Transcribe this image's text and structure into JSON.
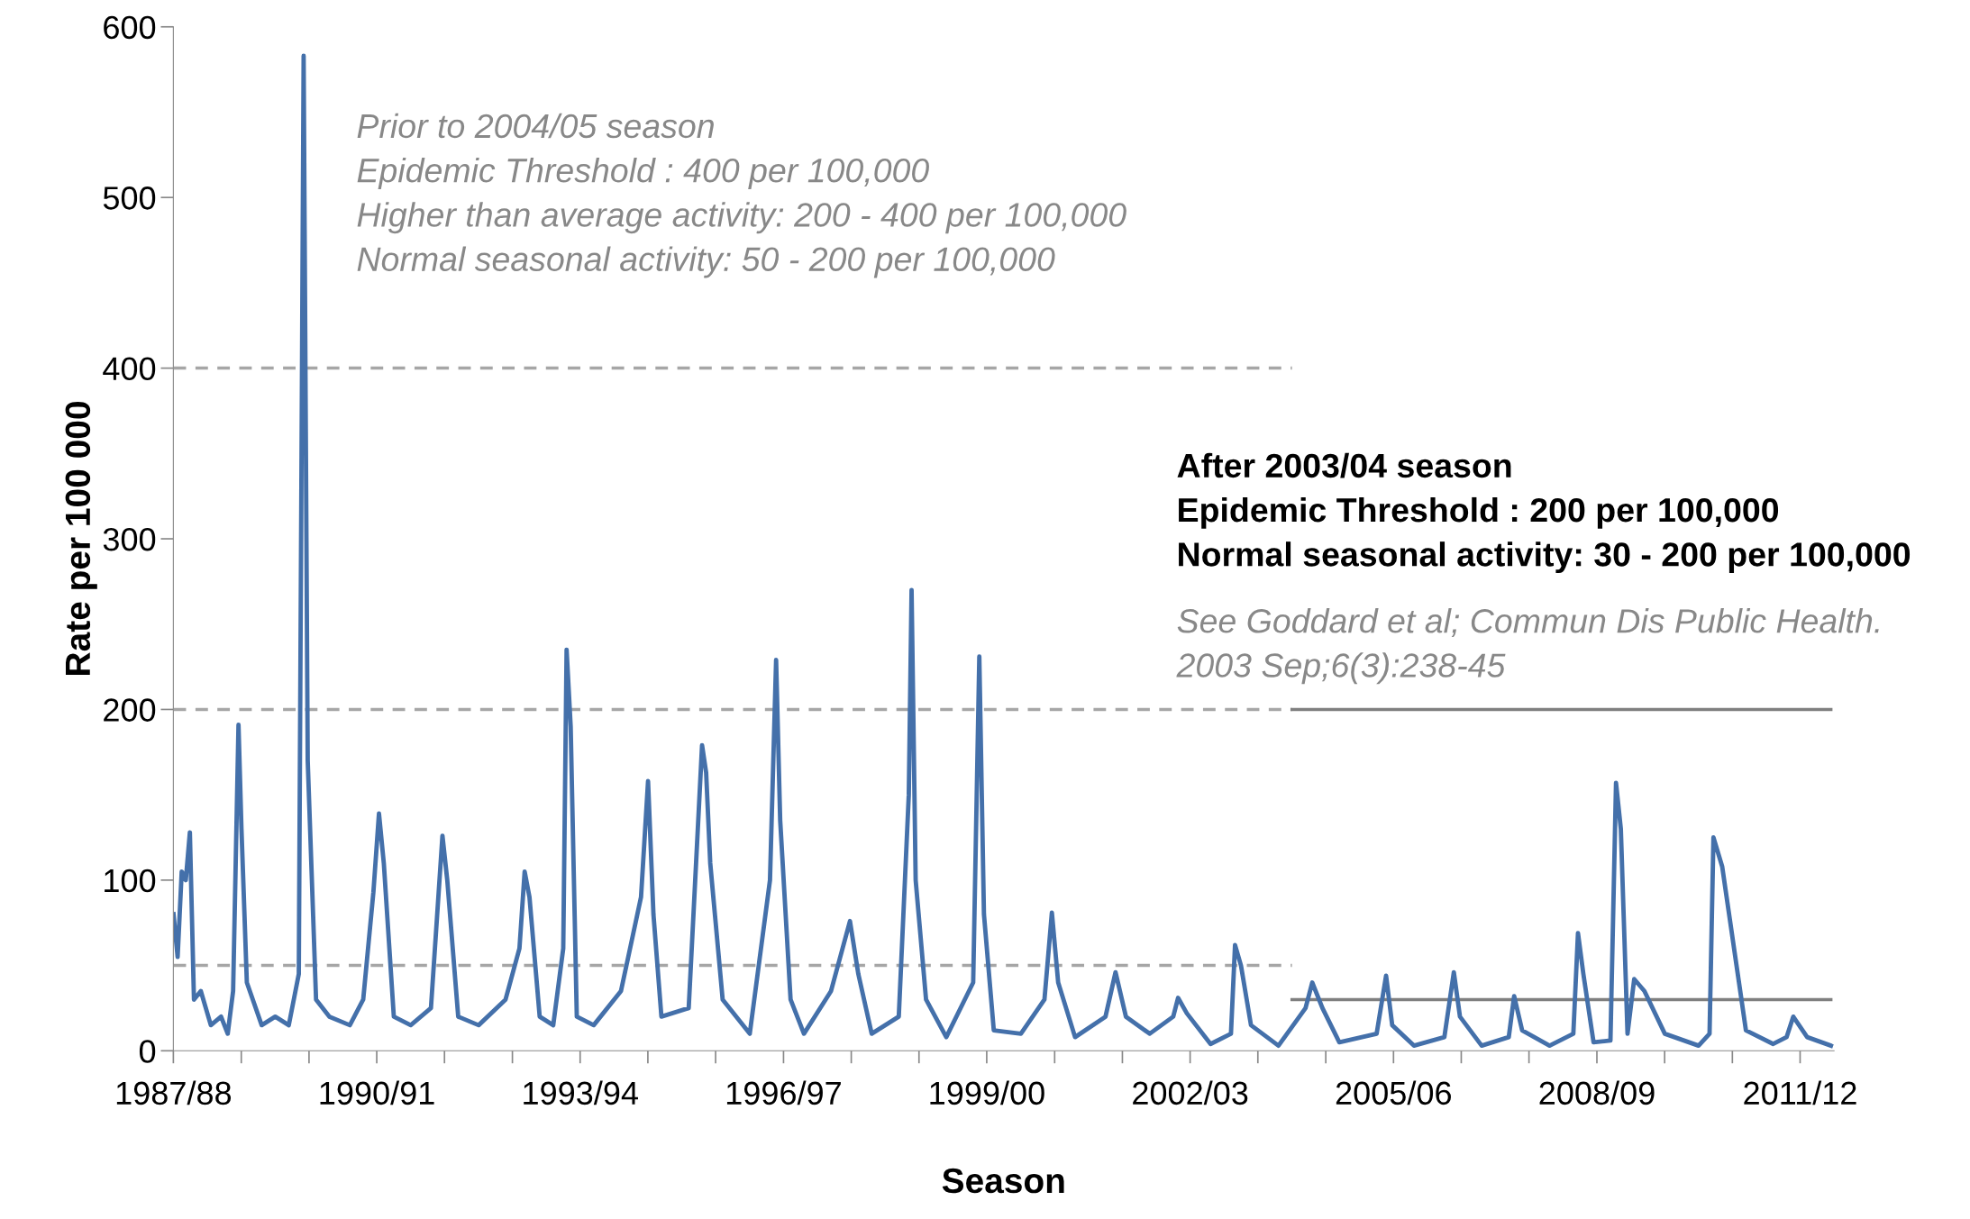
{
  "chart_data": {
    "type": "line",
    "xlabel": "Season",
    "ylabel": "Rate per 100 000",
    "xlim": [
      "1987-12-31",
      "2012-07-01"
    ],
    "ylim": [
      0,
      600
    ],
    "yticks": [
      0,
      100,
      200,
      300,
      400,
      500,
      600
    ],
    "xticks": [
      {
        "value": "1987-12-31",
        "label": "1987/88"
      },
      {
        "value": "1988-12-31",
        "label": null
      },
      {
        "value": "1989-12-31",
        "label": null
      },
      {
        "value": "1990-12-31",
        "label": "1990/91"
      },
      {
        "value": "1991-12-31",
        "label": null
      },
      {
        "value": "1992-12-31",
        "label": null
      },
      {
        "value": "1993-12-31",
        "label": "1993/94"
      },
      {
        "value": "1994-12-31",
        "label": null
      },
      {
        "value": "1995-12-31",
        "label": null
      },
      {
        "value": "1996-12-31",
        "label": "1996/97"
      },
      {
        "value": "1997-12-31",
        "label": null
      },
      {
        "value": "1998-12-31",
        "label": null
      },
      {
        "value": "1999-12-31",
        "label": "1999/00"
      },
      {
        "value": "2000-12-31",
        "label": null
      },
      {
        "value": "2001-12-31",
        "label": null
      },
      {
        "value": "2002-12-31",
        "label": "2002/03"
      },
      {
        "value": "2003-12-31",
        "label": null
      },
      {
        "value": "2004-12-31",
        "label": null
      },
      {
        "value": "2005-12-31",
        "label": "2005/06"
      },
      {
        "value": "2006-12-31",
        "label": null
      },
      {
        "value": "2007-12-31",
        "label": null
      },
      {
        "value": "2008-12-31",
        "label": "2008/09"
      },
      {
        "value": "2009-12-31",
        "label": null
      },
      {
        "value": "2010-12-31",
        "label": null
      },
      {
        "value": "2011-12-31",
        "label": "2011/12"
      }
    ],
    "grid": false,
    "legend": false,
    "marker": "none",
    "series": [
      {
        "color": "#a6a6a6",
        "line_style": "dashed",
        "x": [
          "1988-01-01",
          "2004-07-02"
        ],
        "values": [
          400,
          400
        ]
      },
      {
        "color": "#a6a6a6",
        "line_style": "dashed",
        "x": [
          "1988-01-01",
          "2004-07-02"
        ],
        "values": [
          200,
          200
        ]
      },
      {
        "color": "#a6a6a6",
        "line_style": "dashed",
        "x": [
          "1988-01-01",
          "2004-07-02"
        ],
        "values": [
          50,
          50
        ]
      },
      {
        "color": "#7f7f7f",
        "line_style": "solid",
        "x": [
          "2004-07-02",
          "2012-06-14"
        ],
        "values": [
          200,
          200
        ]
      },
      {
        "color": "#7f7f7f",
        "line_style": "solid",
        "x": [
          "2004-07-02",
          "2012-06-14"
        ],
        "values": [
          30,
          30
        ]
      },
      {
        "color": "#4470aa",
        "line_style": "solid",
        "x": [
          "1988-01-01",
          "1988-01-23",
          "1988-02-14",
          "1988-03-07",
          "1988-03-29",
          "1988-04-20",
          "1988-05-27",
          "1988-07-20",
          "1988-09-13",
          "1988-10-19",
          "1988-11-17",
          "1988-12-16",
          "1989-01-01",
          "1989-01-30",
          "1989-04-20",
          "1989-07-02",
          "1989-09-13",
          "1989-11-06",
          "1989-12-02",
          "1989-12-24",
          "1990-02-07",
          "1990-04-20",
          "1990-08-08",
          "1990-10-19",
          "1990-12-13",
          "1991-01-12",
          "1991-02-07",
          "1991-04-02",
          "1991-07-02",
          "1991-10-19",
          "1991-12-20",
          "1992-01-15",
          "1992-03-14",
          "1992-07-02",
          "1992-11-24",
          "1993-02-07",
          "1993-03-07",
          "1993-04-02",
          "1993-05-27",
          "1993-08-08",
          "1993-10-01",
          "1993-10-19",
          "1993-11-10",
          "1993-12-13",
          "1994-03-14",
          "1994-08-08",
          "1994-11-24",
          "1995-01-01",
          "1995-01-30",
          "1995-03-14",
          "1995-08-08",
          "1995-10-19",
          "1995-11-10",
          "1995-12-02",
          "1996-02-07",
          "1996-07-02",
          "1996-10-19",
          "1996-11-21",
          "1996-12-13",
          "1997-02-07",
          "1997-04-20",
          "1997-09-13",
          "1997-12-24",
          "1998-02-07",
          "1998-04-20",
          "1998-09-13",
          "1998-11-06",
          "1998-11-21",
          "1998-12-13",
          "1999-02-07",
          "1999-05-27",
          "1999-10-19",
          "1999-11-21",
          "1999-12-16",
          "2000-02-07",
          "2000-07-02",
          "2000-11-06",
          "2000-12-16",
          "2001-01-19",
          "2001-04-20",
          "2001-10-01",
          "2001-11-24",
          "2002-01-19",
          "2002-05-27",
          "2002-10-01",
          "2002-10-27",
          "2002-12-13",
          "2003-04-20",
          "2003-08-08",
          "2003-08-30",
          "2003-10-01",
          "2003-11-24",
          "2004-04-20",
          "2004-09-13",
          "2004-10-19",
          "2004-12-13",
          "2005-03-14",
          "2005-10-01",
          "2005-11-21",
          "2005-12-24",
          "2006-04-20",
          "2006-10-01",
          "2006-11-21",
          "2006-12-24",
          "2007-04-20",
          "2007-09-13",
          "2007-10-12",
          "2007-11-24",
          "2008-04-20",
          "2008-08-26",
          "2008-09-20",
          "2008-10-19",
          "2008-12-13",
          "2009-03-14",
          "2009-04-13",
          "2009-05-09",
          "2009-06-14",
          "2009-07-20",
          "2009-09-13",
          "2010-01-01",
          "2010-07-02",
          "2010-08-30",
          "2010-09-20",
          "2010-11-06",
          "2011-03-14",
          "2011-08-08",
          "2011-10-19",
          "2011-11-24",
          "2012-02-07",
          "2012-06-14"
        ],
        "values": [
          80,
          55,
          105,
          100,
          128,
          30,
          35,
          15,
          20,
          10,
          35,
          191,
          130,
          40,
          15,
          20,
          15,
          45,
          583,
          170,
          30,
          20,
          15,
          30,
          93,
          139,
          110,
          20,
          15,
          25,
          126,
          100,
          20,
          15,
          30,
          60,
          105,
          90,
          20,
          15,
          60,
          235,
          190,
          20,
          15,
          35,
          90,
          158,
          80,
          20,
          25,
          179,
          163,
          110,
          30,
          10,
          100,
          229,
          135,
          30,
          10,
          35,
          76,
          45,
          10,
          20,
          150,
          270,
          100,
          30,
          8,
          40,
          231,
          80,
          12,
          10,
          30,
          81,
          40,
          8,
          20,
          46,
          20,
          10,
          20,
          31,
          22,
          4,
          10,
          62,
          50,
          15,
          3,
          25,
          40,
          25,
          5,
          10,
          44,
          15,
          3,
          8,
          46,
          20,
          3,
          8,
          32,
          12,
          3,
          10,
          69,
          45,
          5,
          6,
          157,
          130,
          10,
          42,
          35,
          10,
          3,
          10,
          125,
          108,
          12,
          4,
          8,
          20,
          8,
          3
        ]
      }
    ],
    "annotations": [
      "Prior to 2004/05 season",
      "Epidemic Threshold : 400 per 100,000",
      "Higher than average activity: 200 - 400 per 100,000",
      "Normal seasonal activity: 50 - 200 per 100,000",
      "After 2003/04 season",
      "Epidemic Threshold : 200 per 100,000",
      "Normal seasonal activity: 30 - 200 per 100,000",
      "See Goddard et al; Commun Dis Public Health.",
      "2003 Sep;6(3):238-45"
    ]
  }
}
